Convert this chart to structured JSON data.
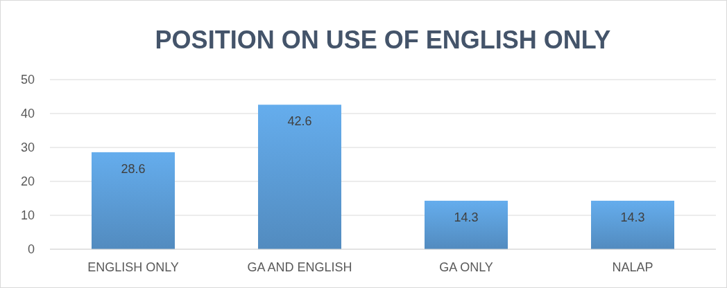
{
  "chart_data": {
    "type": "bar",
    "title": "POSITION ON USE OF ENGLISH ONLY",
    "categories": [
      "ENGLISH ONLY",
      "GA AND ENGLISH",
      "GA ONLY",
      "NALAP"
    ],
    "values": [
      28.6,
      42.6,
      14.3,
      14.3
    ],
    "color": "#5b9bd5",
    "ylim": [
      0,
      50
    ],
    "yticks": [
      0,
      10,
      20,
      30,
      40,
      50
    ],
    "grid": "y",
    "data_labels": true
  }
}
